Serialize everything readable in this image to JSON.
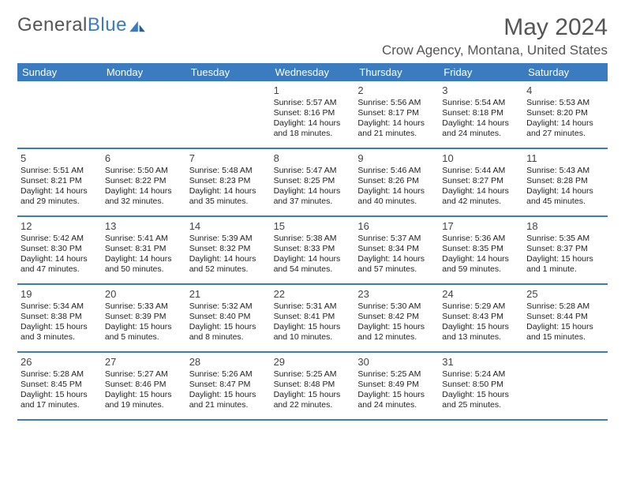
{
  "logo": {
    "text1": "General",
    "text2": "Blue"
  },
  "title": "May 2024",
  "location": "Crow Agency, Montana, United States",
  "colors": {
    "header_bg": "#3b7bbf",
    "header_text": "#ffffff",
    "rule": "#3b7bbf",
    "title_color": "#555555",
    "body_bg": "#ffffff"
  },
  "day_headers": [
    "Sunday",
    "Monday",
    "Tuesday",
    "Wednesday",
    "Thursday",
    "Friday",
    "Saturday"
  ],
  "days": [
    {
      "n": "1",
      "sr": "5:57 AM",
      "ss": "8:16 PM",
      "dl": "14 hours and 18 minutes."
    },
    {
      "n": "2",
      "sr": "5:56 AM",
      "ss": "8:17 PM",
      "dl": "14 hours and 21 minutes."
    },
    {
      "n": "3",
      "sr": "5:54 AM",
      "ss": "8:18 PM",
      "dl": "14 hours and 24 minutes."
    },
    {
      "n": "4",
      "sr": "5:53 AM",
      "ss": "8:20 PM",
      "dl": "14 hours and 27 minutes."
    },
    {
      "n": "5",
      "sr": "5:51 AM",
      "ss": "8:21 PM",
      "dl": "14 hours and 29 minutes."
    },
    {
      "n": "6",
      "sr": "5:50 AM",
      "ss": "8:22 PM",
      "dl": "14 hours and 32 minutes."
    },
    {
      "n": "7",
      "sr": "5:48 AM",
      "ss": "8:23 PM",
      "dl": "14 hours and 35 minutes."
    },
    {
      "n": "8",
      "sr": "5:47 AM",
      "ss": "8:25 PM",
      "dl": "14 hours and 37 minutes."
    },
    {
      "n": "9",
      "sr": "5:46 AM",
      "ss": "8:26 PM",
      "dl": "14 hours and 40 minutes."
    },
    {
      "n": "10",
      "sr": "5:44 AM",
      "ss": "8:27 PM",
      "dl": "14 hours and 42 minutes."
    },
    {
      "n": "11",
      "sr": "5:43 AM",
      "ss": "8:28 PM",
      "dl": "14 hours and 45 minutes."
    },
    {
      "n": "12",
      "sr": "5:42 AM",
      "ss": "8:30 PM",
      "dl": "14 hours and 47 minutes."
    },
    {
      "n": "13",
      "sr": "5:41 AM",
      "ss": "8:31 PM",
      "dl": "14 hours and 50 minutes."
    },
    {
      "n": "14",
      "sr": "5:39 AM",
      "ss": "8:32 PM",
      "dl": "14 hours and 52 minutes."
    },
    {
      "n": "15",
      "sr": "5:38 AM",
      "ss": "8:33 PM",
      "dl": "14 hours and 54 minutes."
    },
    {
      "n": "16",
      "sr": "5:37 AM",
      "ss": "8:34 PM",
      "dl": "14 hours and 57 minutes."
    },
    {
      "n": "17",
      "sr": "5:36 AM",
      "ss": "8:35 PM",
      "dl": "14 hours and 59 minutes."
    },
    {
      "n": "18",
      "sr": "5:35 AM",
      "ss": "8:37 PM",
      "dl": "15 hours and 1 minute."
    },
    {
      "n": "19",
      "sr": "5:34 AM",
      "ss": "8:38 PM",
      "dl": "15 hours and 3 minutes."
    },
    {
      "n": "20",
      "sr": "5:33 AM",
      "ss": "8:39 PM",
      "dl": "15 hours and 5 minutes."
    },
    {
      "n": "21",
      "sr": "5:32 AM",
      "ss": "8:40 PM",
      "dl": "15 hours and 8 minutes."
    },
    {
      "n": "22",
      "sr": "5:31 AM",
      "ss": "8:41 PM",
      "dl": "15 hours and 10 minutes."
    },
    {
      "n": "23",
      "sr": "5:30 AM",
      "ss": "8:42 PM",
      "dl": "15 hours and 12 minutes."
    },
    {
      "n": "24",
      "sr": "5:29 AM",
      "ss": "8:43 PM",
      "dl": "15 hours and 13 minutes."
    },
    {
      "n": "25",
      "sr": "5:28 AM",
      "ss": "8:44 PM",
      "dl": "15 hours and 15 minutes."
    },
    {
      "n": "26",
      "sr": "5:28 AM",
      "ss": "8:45 PM",
      "dl": "15 hours and 17 minutes."
    },
    {
      "n": "27",
      "sr": "5:27 AM",
      "ss": "8:46 PM",
      "dl": "15 hours and 19 minutes."
    },
    {
      "n": "28",
      "sr": "5:26 AM",
      "ss": "8:47 PM",
      "dl": "15 hours and 21 minutes."
    },
    {
      "n": "29",
      "sr": "5:25 AM",
      "ss": "8:48 PM",
      "dl": "15 hours and 22 minutes."
    },
    {
      "n": "30",
      "sr": "5:25 AM",
      "ss": "8:49 PM",
      "dl": "15 hours and 24 minutes."
    },
    {
      "n": "31",
      "sr": "5:24 AM",
      "ss": "8:50 PM",
      "dl": "15 hours and 25 minutes."
    }
  ],
  "first_day_column": 3,
  "labels": {
    "sunrise": "Sunrise:",
    "sunset": "Sunset:",
    "daylight": "Daylight:"
  }
}
